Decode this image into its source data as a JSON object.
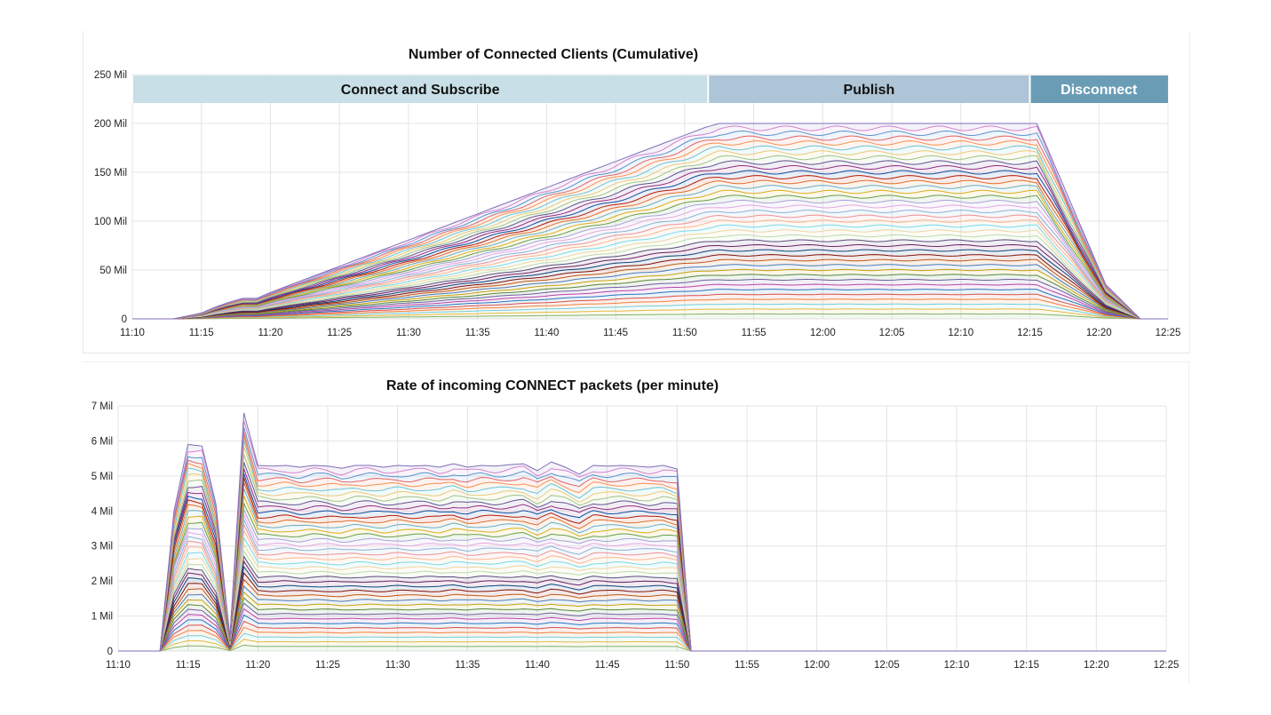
{
  "chart_data": [
    {
      "type": "area",
      "title": "Number of Connected Clients (Cumulative)",
      "stacked": true,
      "series_count": 40,
      "x_ticks": [
        "11:10",
        "11:15",
        "11:20",
        "11:25",
        "11:30",
        "11:35",
        "11:40",
        "11:45",
        "11:50",
        "11:55",
        "12:00",
        "12:05",
        "12:10",
        "12:15",
        "12:20",
        "12:25"
      ],
      "y_ticks": [
        "0",
        "50 Mil",
        "100 Mil",
        "150 Mil",
        "200 Mil",
        "250 Mil"
      ],
      "ylim": [
        0,
        250
      ],
      "y_unit": "Mil",
      "xlim_minutes_after_1110": [
        0,
        75
      ],
      "grid": true,
      "total": {
        "x_minutes": [
          0,
          3,
          5,
          6,
          7,
          8,
          9,
          10,
          41.5,
          42.5,
          64.5,
          65.5,
          70.5,
          73,
          75
        ],
        "y": [
          0,
          0,
          6,
          12,
          17,
          21,
          21,
          27,
          196,
          200,
          200,
          200,
          35,
          0,
          0
        ]
      },
      "phases": [
        {
          "label": "Connect and Subscribe",
          "color": "#c8dfe7",
          "text_color": "#111111",
          "start_min": 0,
          "end_min": 41.7
        },
        {
          "label": "Publish",
          "color": "#aec5d7",
          "text_color": "#111111",
          "start_min": 41.7,
          "end_min": 65
        },
        {
          "label": "Disconnect",
          "color": "#6a9cb6",
          "text_color": "#ffffff",
          "start_min": 65,
          "end_min": 75
        }
      ]
    },
    {
      "type": "area",
      "title": "Rate of incoming CONNECT packets (per minute)",
      "stacked": true,
      "series_count": 40,
      "x_ticks": [
        "11:10",
        "11:15",
        "11:20",
        "11:25",
        "11:30",
        "11:35",
        "11:40",
        "11:45",
        "11:50",
        "11:55",
        "12:00",
        "12:05",
        "12:10",
        "12:15",
        "12:20",
        "12:25"
      ],
      "y_ticks": [
        "0",
        "1 Mil",
        "2 Mil",
        "3 Mil",
        "4 Mil",
        "5 Mil",
        "6 Mil",
        "7 Mil"
      ],
      "ylim": [
        0,
        7
      ],
      "y_unit": "Mil",
      "xlim_minutes_after_1110": [
        0,
        75
      ],
      "grid": true,
      "total": {
        "x_minutes": [
          0,
          3,
          4,
          5,
          6,
          7,
          8,
          9,
          10,
          11,
          12,
          13,
          14,
          15,
          16,
          17,
          18,
          19,
          20,
          21,
          22,
          23,
          24,
          25,
          26,
          27,
          28,
          29,
          30,
          31,
          32,
          33,
          34,
          35,
          36,
          37,
          38,
          39,
          40,
          41,
          42,
          43,
          75
        ],
        "y": [
          0,
          0,
          4.0,
          5.9,
          5.85,
          4.2,
          0.4,
          6.8,
          5.3,
          5.28,
          5.3,
          5.25,
          5.3,
          5.28,
          5.22,
          5.3,
          5.3,
          5.25,
          5.3,
          5.28,
          5.3,
          5.25,
          5.35,
          5.25,
          5.3,
          5.28,
          5.32,
          5.35,
          5.15,
          5.4,
          5.25,
          5.05,
          5.3,
          5.28,
          5.3,
          5.28,
          5.25,
          5.3,
          5.2,
          0,
          0,
          0,
          0
        ]
      }
    }
  ],
  "palette": [
    "#7eb26d",
    "#eab839",
    "#6ed0e0",
    "#ef843c",
    "#e24d42",
    "#1f78c1",
    "#ba43a9",
    "#705da0",
    "#508642",
    "#cca300",
    "#447ebc",
    "#c15c17",
    "#890f02",
    "#0a437c",
    "#6d1f62",
    "#584477",
    "#b7dbab",
    "#f4d598",
    "#70dbed",
    "#f9ba8f",
    "#f29191",
    "#82b5d8",
    "#e5a8e2",
    "#aea2e0",
    "#629e51",
    "#e5ac0e",
    "#64b0c8",
    "#e0752d",
    "#bf1b00",
    "#0a50a1",
    "#962d82",
    "#614d93",
    "#9ac48a",
    "#f2c96d",
    "#65c5db",
    "#f9934e",
    "#ea6460",
    "#5195ce",
    "#d683ce",
    "#806eb7"
  ]
}
